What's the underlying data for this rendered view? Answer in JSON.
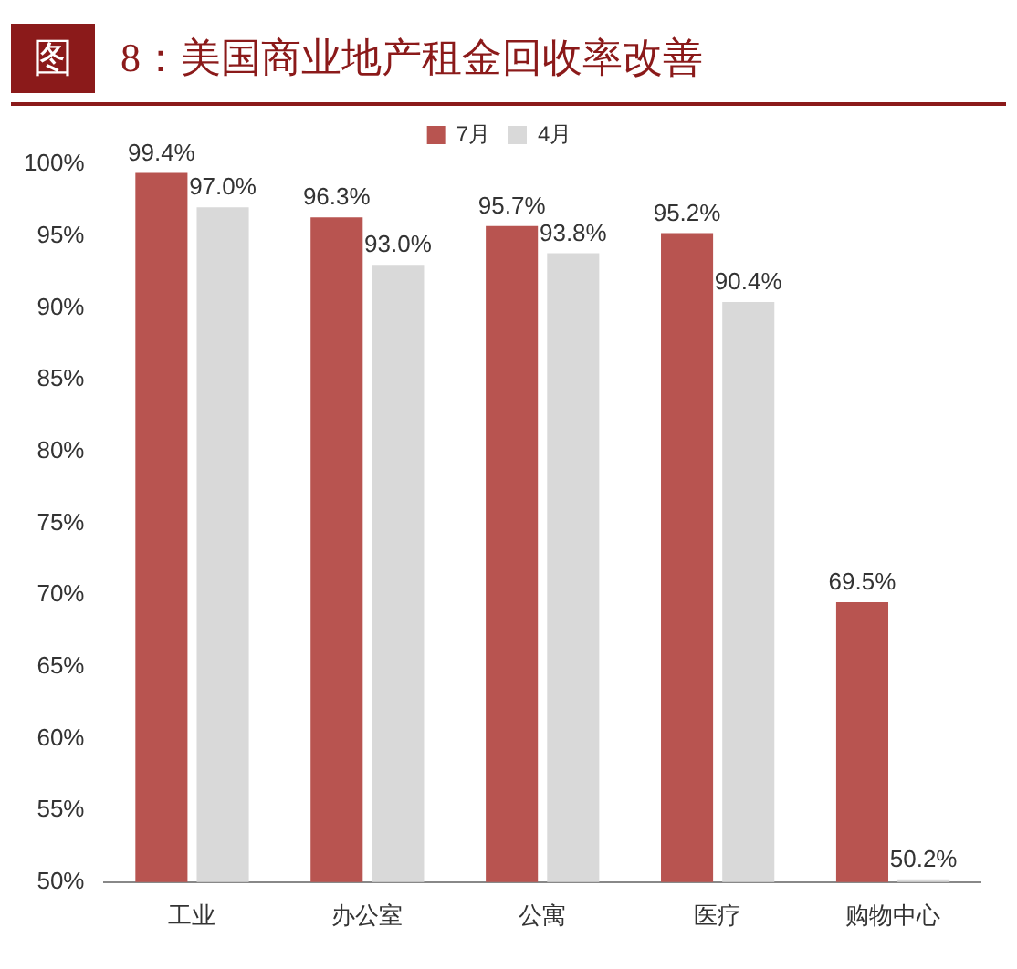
{
  "chart_data": {
    "type": "bar",
    "title": "图 8：美国商业地产租金回收率改善",
    "categories": [
      "工业",
      "办公室",
      "公寓",
      "医疗",
      "购物中心"
    ],
    "series": [
      {
        "name": "7月",
        "color": "#b85450",
        "values": [
          99.4,
          96.3,
          95.7,
          95.2,
          69.5
        ],
        "value_labels": [
          "99.4%",
          "96.3%",
          "95.7%",
          "95.2%",
          "69.5%"
        ]
      },
      {
        "name": "4月",
        "color": "#d9d9d9",
        "values": [
          97.0,
          93.0,
          93.8,
          90.4,
          50.2
        ],
        "value_labels": [
          "97.0%",
          "93.0%",
          "93.8%",
          "90.4%",
          "50.2%"
        ]
      }
    ],
    "ylim": [
      50,
      100
    ],
    "yticks": [
      {
        "value": 50,
        "label": "50%"
      },
      {
        "value": 55,
        "label": "55%"
      },
      {
        "value": 60,
        "label": "60%"
      },
      {
        "value": 65,
        "label": "65%"
      },
      {
        "value": 70,
        "label": "70%"
      },
      {
        "value": 75,
        "label": "75%"
      },
      {
        "value": 80,
        "label": "80%"
      },
      {
        "value": 85,
        "label": "85%"
      },
      {
        "value": 90,
        "label": "90%"
      },
      {
        "value": 95,
        "label": "95%"
      },
      {
        "value": 100,
        "label": "100%"
      }
    ],
    "grid": false,
    "legend": "top"
  }
}
